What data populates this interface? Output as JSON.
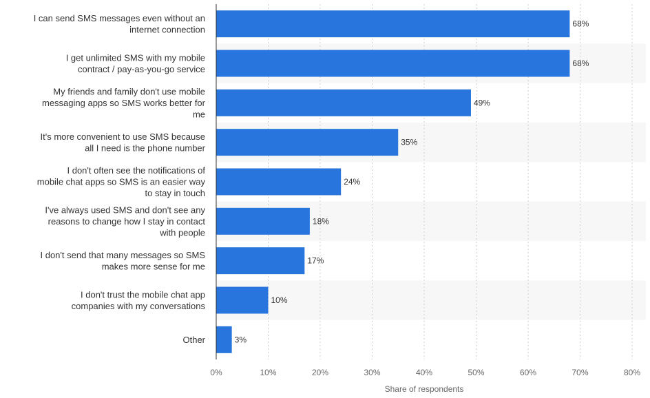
{
  "chart_data": {
    "type": "bar",
    "orientation": "horizontal",
    "categories": [
      [
        "I can send SMS messages even without an",
        "internet connection"
      ],
      [
        "I get unlimited SMS with my mobile",
        "contract / pay-as-you-go service"
      ],
      [
        "My friends and family don't use mobile",
        "messaging apps so SMS works better for",
        "me"
      ],
      [
        "It's more convenient to use SMS because",
        "all I need is the phone number"
      ],
      [
        "I don't often see the notifications of",
        "mobile chat apps so SMS is an easier way",
        "to stay in touch"
      ],
      [
        "I've always used SMS and don't see any",
        "reasons to change how I stay in contact",
        "with people"
      ],
      [
        "I don't send that many messages so SMS",
        "makes more sense for me"
      ],
      [
        "I don't trust the mobile chat app",
        "companies with my conversations"
      ],
      [
        "Other"
      ]
    ],
    "values": [
      68,
      68,
      49,
      35,
      24,
      18,
      17,
      10,
      3
    ],
    "value_labels": [
      "68%",
      "68%",
      "49%",
      "35%",
      "24%",
      "18%",
      "17%",
      "10%",
      "3%"
    ],
    "xlim": [
      0,
      80
    ],
    "x_ticks": [
      0,
      10,
      20,
      30,
      40,
      50,
      60,
      70,
      80
    ],
    "x_tick_labels": [
      "0%",
      "10%",
      "20%",
      "30%",
      "40%",
      "50%",
      "60%",
      "70%",
      "80%"
    ],
    "xlabel": "Share of respondents",
    "grid": "vertical dashed",
    "bar_color": "#2876dd",
    "band_color": "#f7f7f7"
  }
}
